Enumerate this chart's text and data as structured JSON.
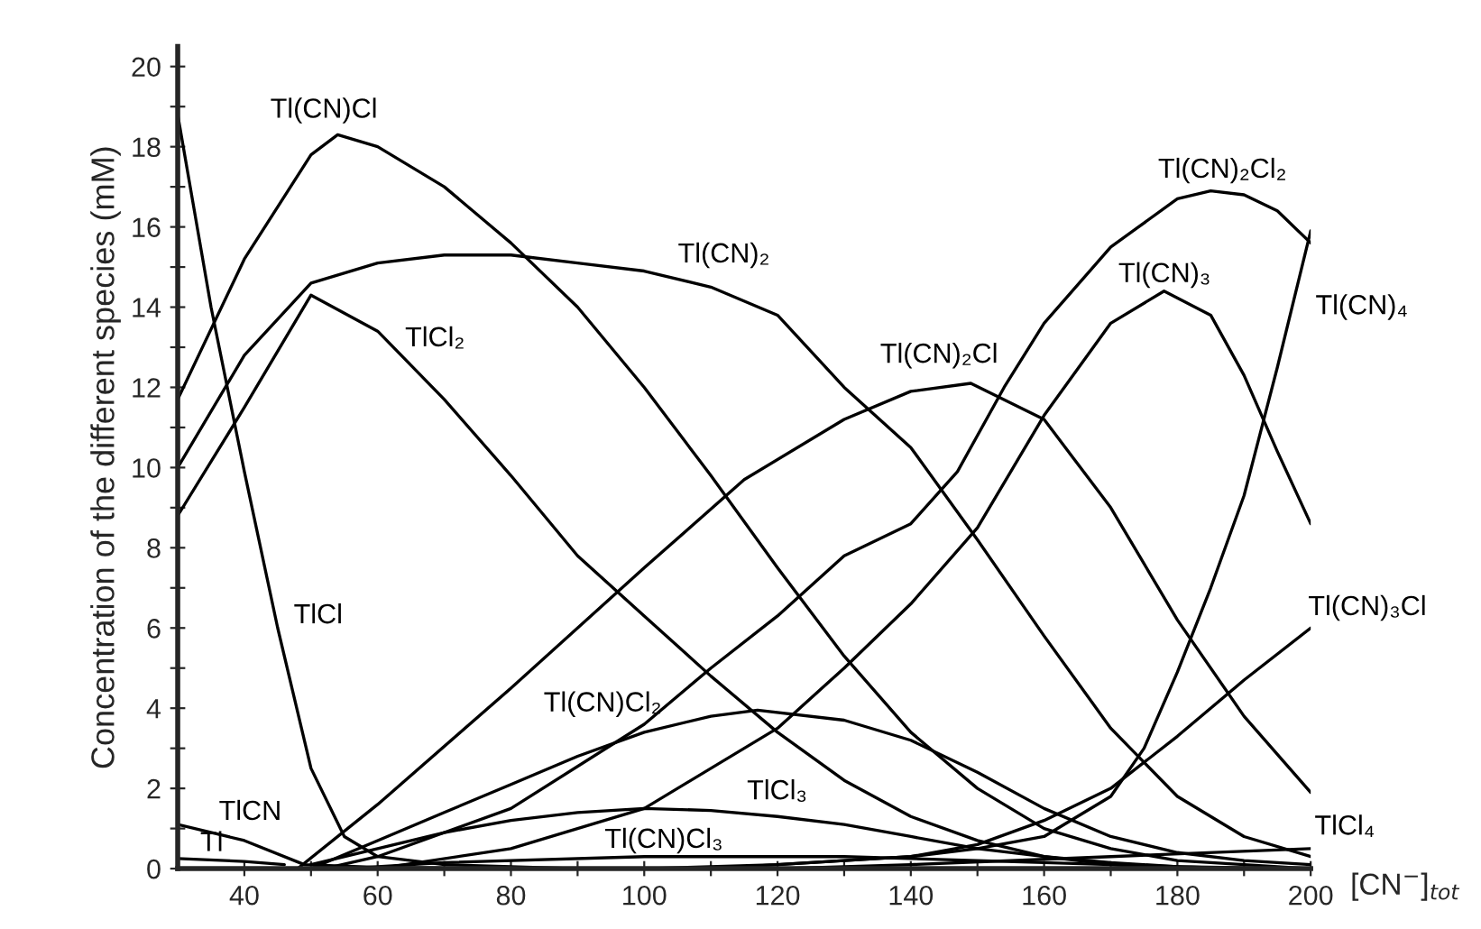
{
  "chart_data": {
    "type": "line",
    "xlabel": "[CN$^{−}$]$_{tot}$",
    "ylabel": "Concentration of the different species (mM)",
    "xlim": [
      30,
      200
    ],
    "ylim": [
      0,
      20.5
    ],
    "xticks": [
      40,
      {
        "value": 50,
        "label": null
      },
      60,
      {
        "value": 70,
        "label": null
      },
      80,
      {
        "value": 90,
        "label": null
      },
      100,
      {
        "value": 110,
        "label": null
      },
      120,
      {
        "value": 130,
        "label": null
      },
      140,
      {
        "value": 150,
        "label": null
      },
      160,
      {
        "value": 170,
        "label": null
      },
      180,
      {
        "value": 190,
        "label": null
      },
      200
    ],
    "yticks": [
      0,
      {
        "value": 1,
        "label": null
      },
      2,
      {
        "value": 3,
        "label": null
      },
      4,
      {
        "value": 5,
        "label": null
      },
      6,
      {
        "value": 7,
        "label": null
      },
      8,
      {
        "value": 9,
        "label": null
      },
      10,
      {
        "value": 11,
        "label": null
      },
      12,
      {
        "value": 13,
        "label": null
      },
      14,
      {
        "value": 15,
        "label": null
      },
      16,
      {
        "value": 17,
        "label": null
      },
      18,
      {
        "value": 19,
        "label": null
      },
      20
    ],
    "grid": false,
    "legend": false,
    "series": [
      {
        "name": "Tl(CN)Cl",
        "color": "#000000",
        "x": [
          30,
          40,
          50,
          54,
          60,
          70,
          80,
          90,
          100,
          110,
          120,
          130,
          140,
          150,
          160,
          170,
          180,
          190,
          200
        ],
        "values": [
          11.7,
          15.2,
          17.8,
          18.3,
          18.0,
          17.0,
          15.6,
          14.0,
          12.0,
          9.8,
          7.5,
          5.3,
          3.4,
          2.0,
          1.0,
          0.5,
          0.2,
          0.1,
          0.0
        ]
      },
      {
        "name": "Tl(CN)₂",
        "color": "#000000",
        "x": [
          30,
          40,
          50,
          60,
          70,
          80,
          90,
          100,
          110,
          120,
          130,
          140,
          150,
          160,
          170,
          180,
          190,
          200
        ],
        "values": [
          10.0,
          12.8,
          14.6,
          15.1,
          15.3,
          15.3,
          15.1,
          14.9,
          14.5,
          13.8,
          12.0,
          10.5,
          8.2,
          5.8,
          3.5,
          1.8,
          0.8,
          0.3
        ]
      },
      {
        "name": "TlCl₂",
        "color": "#000000",
        "x": [
          30,
          40,
          50,
          60,
          70,
          80,
          90,
          100,
          110,
          120,
          130,
          140,
          150,
          160,
          170,
          180
        ],
        "values": [
          8.8,
          11.5,
          14.3,
          13.4,
          11.7,
          9.8,
          7.8,
          6.3,
          4.8,
          3.4,
          2.2,
          1.3,
          0.7,
          0.3,
          0.1,
          0.0
        ]
      },
      {
        "name": "TlCl",
        "color": "#000000",
        "x": [
          30,
          35,
          40,
          45,
          50,
          55,
          60,
          70,
          80,
          90
        ],
        "values": [
          18.8,
          14.0,
          9.9,
          6.0,
          2.5,
          0.8,
          0.3,
          0.1,
          0.05,
          0.0
        ]
      },
      {
        "name": "Tl(CN)₂Cl₂",
        "color": "#000000",
        "x": [
          52,
          60,
          80,
          100,
          110,
          120,
          130,
          140,
          147,
          154,
          160,
          170,
          180,
          185,
          190,
          195,
          200
        ],
        "values": [
          0.0,
          0.3,
          1.5,
          3.6,
          5.0,
          6.3,
          7.8,
          8.6,
          9.9,
          12.0,
          13.6,
          15.5,
          16.7,
          16.9,
          16.8,
          16.4,
          15.6
        ]
      },
      {
        "name": "Tl(CN)₂Cl",
        "color": "#000000",
        "x": [
          48,
          60,
          80,
          100,
          115,
          130,
          140,
          149,
          160,
          170,
          180,
          190,
          200
        ],
        "values": [
          0.0,
          1.6,
          4.5,
          7.5,
          9.7,
          11.2,
          11.9,
          12.1,
          11.2,
          9.0,
          6.2,
          3.8,
          1.9
        ]
      },
      {
        "name": "Tl(CN)₃",
        "color": "#000000",
        "x": [
          60,
          80,
          100,
          120,
          130,
          140,
          150,
          155,
          160,
          170,
          178,
          185,
          190,
          195,
          200
        ],
        "values": [
          0.0,
          0.5,
          1.5,
          3.5,
          5.0,
          6.6,
          8.5,
          9.9,
          11.3,
          13.6,
          14.4,
          13.8,
          12.3,
          10.4,
          8.6
        ]
      },
      {
        "name": "Tl(CN)₄",
        "color": "#000000",
        "x": [
          100,
          120,
          140,
          150,
          160,
          170,
          175,
          180,
          185,
          190,
          195,
          200
        ],
        "values": [
          0.0,
          0.1,
          0.3,
          0.5,
          0.8,
          1.8,
          3.0,
          4.9,
          7.0,
          9.3,
          12.5,
          15.9
        ]
      },
      {
        "name": "Tl(CN)₃Cl",
        "color": "#000000",
        "x": [
          110,
          140,
          150,
          160,
          170,
          180,
          190,
          200
        ],
        "values": [
          0.0,
          0.3,
          0.6,
          1.2,
          2.0,
          3.3,
          4.7,
          6.0
        ]
      },
      {
        "name": "Tl(CN)Cl₂",
        "color": "#000000",
        "x": [
          50,
          60,
          70,
          80,
          90,
          100,
          110,
          117,
          130,
          140,
          150,
          160,
          170,
          180,
          190,
          200
        ],
        "values": [
          0.0,
          0.7,
          1.4,
          2.1,
          2.8,
          3.4,
          3.8,
          3.95,
          3.7,
          3.2,
          2.4,
          1.5,
          0.8,
          0.4,
          0.2,
          0.1
        ]
      },
      {
        "name": "TlCl₃",
        "color": "#000000",
        "x": [
          50,
          60,
          70,
          80,
          90,
          100,
          110,
          120,
          130,
          140,
          150,
          160,
          170,
          180,
          200
        ],
        "values": [
          0.1,
          0.5,
          0.9,
          1.2,
          1.4,
          1.5,
          1.45,
          1.3,
          1.1,
          0.8,
          0.5,
          0.3,
          0.15,
          0.05,
          0.0
        ]
      },
      {
        "name": "Tl(CN)Cl₃",
        "color": "#000000",
        "x": [
          55,
          70,
          100,
          130,
          160,
          190
        ],
        "values": [
          0.0,
          0.15,
          0.3,
          0.3,
          0.15,
          0.0
        ]
      },
      {
        "name": "TlCl₄",
        "color": "#000000",
        "x": [
          120,
          140,
          170,
          200
        ],
        "values": [
          0.0,
          0.1,
          0.3,
          0.5
        ]
      },
      {
        "name": "TlCN",
        "color": "#000000",
        "x": [
          30,
          40,
          49,
          60,
          80
        ],
        "values": [
          1.1,
          0.7,
          0.1,
          0.03,
          0.0
        ]
      },
      {
        "name": "Tl",
        "color": "#000000",
        "x": [
          30,
          40,
          46
        ],
        "values": [
          0.25,
          0.18,
          0.1
        ]
      }
    ]
  }
}
